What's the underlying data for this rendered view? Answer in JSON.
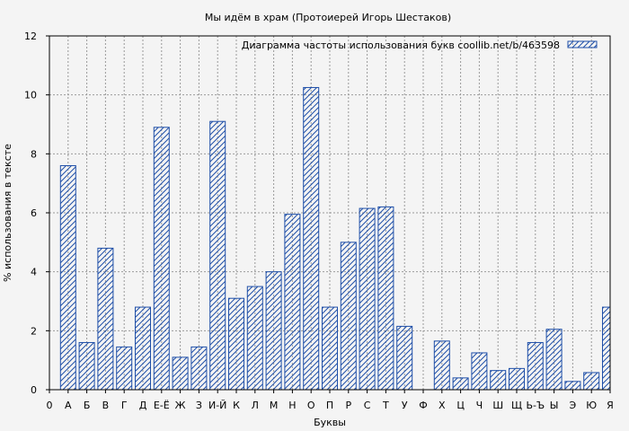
{
  "chart_data": {
    "type": "bar",
    "title": "Мы идём в храм (Протоиерей Игорь Шестаков)",
    "xlabel": "Буквы",
    "ylabel": "% использования в тексте",
    "ylim": [
      0,
      12
    ],
    "yticks": [
      0,
      2,
      4,
      6,
      8,
      10,
      12
    ],
    "grid": true,
    "legend_position": "top-right",
    "x_tick_labels": [
      "0",
      "А",
      "Б",
      "В",
      "Г",
      "Д",
      "Е-Ё",
      "Ж",
      "З",
      "И-Й",
      "К",
      "Л",
      "М",
      "Н",
      "О",
      "П",
      "Р",
      "С",
      "Т",
      "У",
      "Ф",
      "Х",
      "Ц",
      "Ч",
      "Ш",
      "Щ",
      "Ь-Ъ",
      "Ы",
      "Э",
      "Ю",
      "Я"
    ],
    "categories": [
      "А",
      "Б",
      "В",
      "Г",
      "Д",
      "Е-Ё",
      "Ж",
      "З",
      "И-Й",
      "К",
      "Л",
      "М",
      "Н",
      "О",
      "П",
      "Р",
      "С",
      "Т",
      "У",
      "Ф",
      "Х",
      "Ц",
      "Ч",
      "Ш",
      "Щ",
      "Ь-Ъ",
      "Ы",
      "Э",
      "Ю",
      "Я"
    ],
    "series": [
      {
        "name": "Диаграмма частоты использования букв  coollib.net/b/463598",
        "values": [
          7.6,
          1.6,
          4.8,
          1.45,
          2.8,
          8.9,
          1.1,
          1.45,
          9.1,
          3.1,
          3.5,
          4.0,
          5.95,
          10.25,
          2.8,
          5.0,
          6.15,
          6.2,
          2.15,
          0.0,
          1.65,
          0.4,
          1.25,
          0.65,
          0.72,
          1.6,
          2.05,
          0.28,
          0.58,
          2.8
        ]
      }
    ],
    "colors": {
      "bar_stroke": "#1f4fa8",
      "grid": "#9a9a9a",
      "background": "#f4f4f4"
    }
  }
}
